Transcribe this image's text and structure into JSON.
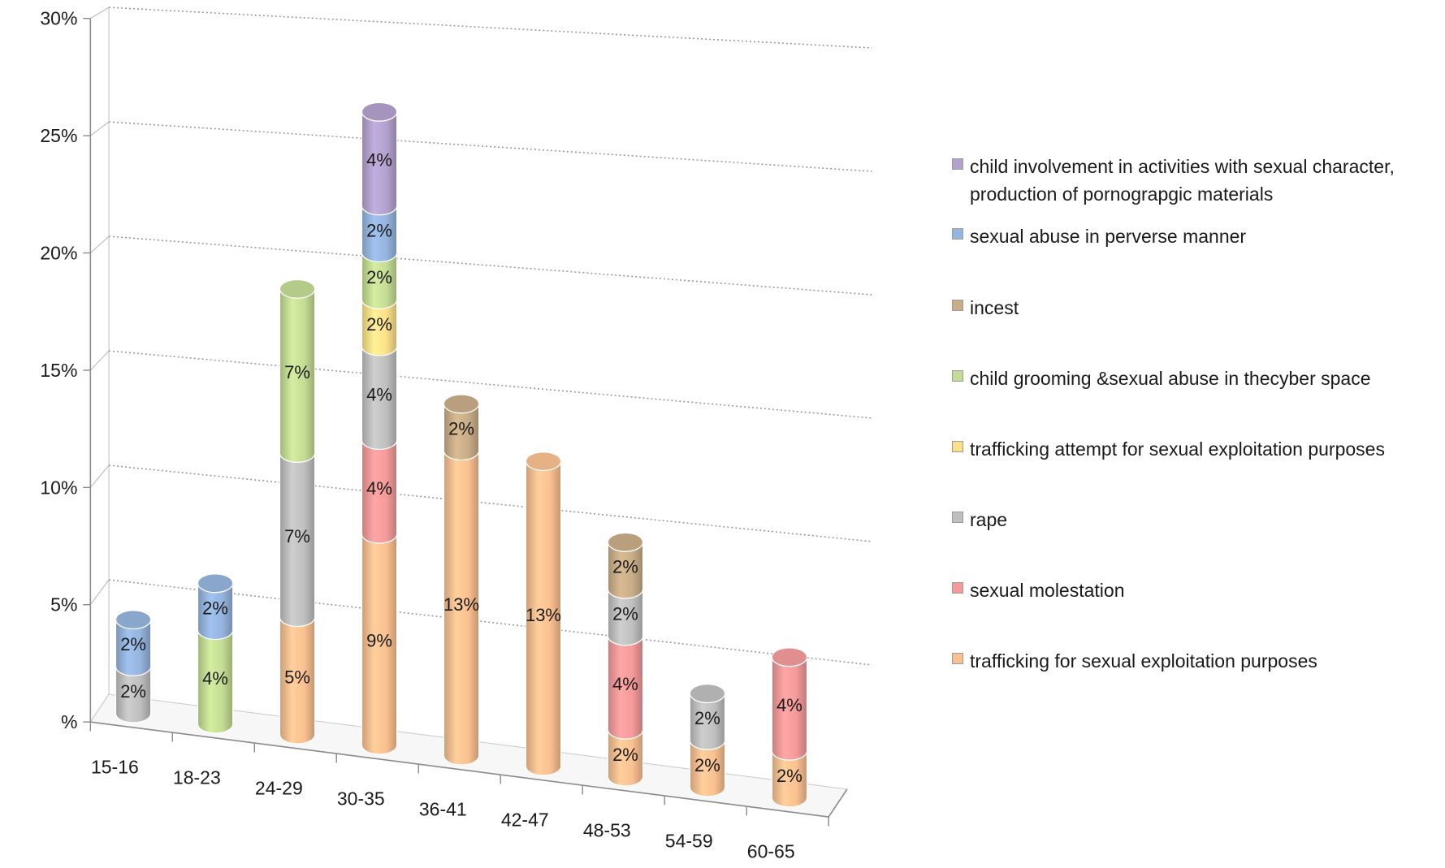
{
  "chart_data": {
    "type": "bar",
    "stacked": true,
    "style": "3d-cylinder",
    "categories": [
      "15-16",
      "18-23",
      "24-29",
      "30-35",
      "36-41",
      "42-47",
      "48-53",
      "54-59",
      "60-65"
    ],
    "y_tick_labels": [
      "%",
      "5%",
      "10%",
      "15%",
      "20%",
      "25%",
      "30%"
    ],
    "ylim": [
      0,
      30
    ],
    "grid": "horizontal dotted",
    "legend_position": "right",
    "series": [
      {
        "name": "trafficking for sexual exploitation purposes",
        "color": "#fac090",
        "values": [
          0,
          0,
          5,
          9,
          13,
          13,
          2,
          2,
          2
        ],
        "labels": [
          "",
          "",
          "5%",
          "9%",
          "13%",
          "13%",
          "2%",
          "2%",
          "2%"
        ]
      },
      {
        "name": "sexual molestation",
        "color": "#f49a9a",
        "values": [
          0,
          0,
          0,
          4,
          0,
          0,
          4,
          0,
          4
        ],
        "labels": [
          "",
          "",
          "",
          "4%",
          "",
          "",
          "4%",
          "",
          "4%"
        ]
      },
      {
        "name": "rape",
        "color": "#bfbfbf",
        "values": [
          2,
          0,
          7,
          4,
          0,
          0,
          2,
          2,
          0
        ],
        "labels": [
          "2%",
          "",
          "7%",
          "4%",
          "",
          "",
          "2%",
          "2%",
          ""
        ]
      },
      {
        "name": "trafficking attempt for sexual exploitation purposes",
        "color": "#fbe08a",
        "values": [
          0,
          0,
          0,
          2,
          0,
          0,
          0,
          0,
          0
        ],
        "labels": [
          "",
          "",
          "",
          "2%",
          "",
          "",
          "",
          "",
          ""
        ]
      },
      {
        "name": "child grooming &sexual abuse in thecyber space",
        "color": "#c4dc94",
        "values": [
          0,
          4,
          7,
          2,
          0,
          0,
          0,
          0,
          0
        ],
        "labels": [
          "",
          "4%",
          "7%",
          "2%",
          "",
          "",
          "",
          "",
          ""
        ]
      },
      {
        "name": "incest",
        "color": "#c9ad88",
        "values": [
          0,
          0,
          0,
          0,
          2,
          0,
          2,
          0,
          0
        ],
        "labels": [
          "",
          "",
          "",
          "",
          "2%",
          "",
          "2%",
          "",
          ""
        ]
      },
      {
        "name": "sexual abuse in perverse manner",
        "color": "#95b4de",
        "values": [
          2,
          2,
          0,
          2,
          0,
          0,
          0,
          0,
          0
        ],
        "labels": [
          "2%",
          "2%",
          "",
          "2%",
          "",
          "",
          "",
          "",
          ""
        ]
      },
      {
        "name": "child involvement in activities with sexual character,\nproduction of pornograpgic materials",
        "color": "#b3a2cf",
        "values": [
          0,
          0,
          0,
          4,
          0,
          0,
          0,
          0,
          0
        ],
        "labels": [
          "",
          "",
          "",
          "4%",
          "",
          "",
          "",
          "",
          ""
        ]
      }
    ]
  }
}
